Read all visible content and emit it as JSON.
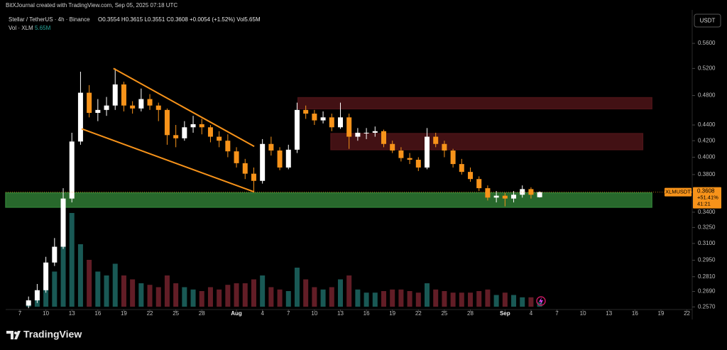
{
  "header": {
    "credit": "BitXJournal created with TradingView.com, Sep 05, 2025 07:18 UTC",
    "symbol": "Stellar / TetherUS · 4h · Binance",
    "ohlc": "O0.3554 H0.3615 L0.3551 C0.3608 +0.0054 (+1.52%) Vol5.65M",
    "volume_label": "Vol · XLM",
    "volume_value": "5.65M"
  },
  "currency_button": "USDT",
  "footer_logo": "TradingView",
  "chart_data": {
    "type": "candlestick",
    "x": [
      1,
      2,
      3,
      4,
      5,
      6,
      7,
      8,
      9,
      10,
      11,
      12,
      13,
      14,
      15,
      16,
      17,
      18,
      19,
      20,
      21,
      22,
      23,
      24,
      25,
      26,
      27,
      28,
      29,
      30,
      31,
      32,
      33,
      34,
      35,
      36,
      37,
      38,
      39,
      40,
      41,
      42,
      43,
      44,
      45,
      46,
      47,
      48,
      49,
      50,
      51,
      52,
      53,
      54,
      55,
      56,
      57,
      58,
      59,
      60
    ],
    "open": [
      0.258,
      0.262,
      0.27,
      0.293,
      0.307,
      0.354,
      0.419,
      0.484,
      0.456,
      0.46,
      0.466,
      0.496,
      0.466,
      0.462,
      0.475,
      0.466,
      0.46,
      0.427,
      0.423,
      0.437,
      0.441,
      0.437,
      0.425,
      0.42,
      0.407,
      0.393,
      0.381,
      0.373,
      0.416,
      0.408,
      0.388,
      0.409,
      0.46,
      0.455,
      0.446,
      0.45,
      0.437,
      0.45,
      0.425,
      0.43,
      0.43,
      0.432,
      0.416,
      0.408,
      0.399,
      0.397,
      0.388,
      0.425,
      0.416,
      0.408,
      0.392,
      0.383,
      0.375,
      0.365,
      0.355,
      0.357,
      0.354,
      0.358,
      0.364,
      0.3554
    ],
    "high": [
      0.265,
      0.275,
      0.298,
      0.315,
      0.365,
      0.43,
      0.515,
      0.495,
      0.475,
      0.478,
      0.52,
      0.5,
      0.472,
      0.49,
      0.482,
      0.47,
      0.462,
      0.44,
      0.445,
      0.452,
      0.448,
      0.44,
      0.432,
      0.428,
      0.412,
      0.398,
      0.388,
      0.422,
      0.425,
      0.412,
      0.415,
      0.47,
      0.466,
      0.46,
      0.458,
      0.455,
      0.47,
      0.455,
      0.436,
      0.436,
      0.438,
      0.434,
      0.42,
      0.412,
      0.405,
      0.4,
      0.436,
      0.43,
      0.42,
      0.41,
      0.398,
      0.388,
      0.378,
      0.368,
      0.362,
      0.36,
      0.362,
      0.368,
      0.366,
      0.3615
    ],
    "low": [
      0.256,
      0.26,
      0.268,
      0.29,
      0.305,
      0.35,
      0.415,
      0.45,
      0.445,
      0.452,
      0.46,
      0.458,
      0.455,
      0.458,
      0.46,
      0.445,
      0.415,
      0.412,
      0.42,
      0.43,
      0.428,
      0.418,
      0.412,
      0.4,
      0.388,
      0.375,
      0.362,
      0.37,
      0.402,
      0.385,
      0.386,
      0.405,
      0.448,
      0.44,
      0.442,
      0.432,
      0.435,
      0.41,
      0.42,
      0.422,
      0.425,
      0.412,
      0.405,
      0.395,
      0.392,
      0.384,
      0.386,
      0.412,
      0.4,
      0.388,
      0.38,
      0.372,
      0.362,
      0.352,
      0.35,
      0.346,
      0.35,
      0.355,
      0.354,
      0.3551
    ],
    "close": [
      0.262,
      0.27,
      0.293,
      0.307,
      0.354,
      0.419,
      0.484,
      0.456,
      0.46,
      0.466,
      0.496,
      0.466,
      0.462,
      0.475,
      0.466,
      0.46,
      0.427,
      0.423,
      0.437,
      0.441,
      0.437,
      0.425,
      0.42,
      0.407,
      0.393,
      0.381,
      0.373,
      0.416,
      0.408,
      0.388,
      0.409,
      0.46,
      0.455,
      0.446,
      0.45,
      0.437,
      0.45,
      0.425,
      0.43,
      0.43,
      0.432,
      0.416,
      0.408,
      0.399,
      0.397,
      0.388,
      0.425,
      0.416,
      0.408,
      0.392,
      0.383,
      0.375,
      0.365,
      0.355,
      0.357,
      0.354,
      0.358,
      0.364,
      0.358,
      0.3608
    ],
    "volume": [
      5,
      10,
      30,
      45,
      90,
      120,
      80,
      60,
      45,
      40,
      55,
      40,
      35,
      30,
      28,
      25,
      40,
      30,
      25,
      22,
      20,
      25,
      22,
      28,
      30,
      30,
      35,
      40,
      25,
      22,
      20,
      50,
      35,
      25,
      22,
      25,
      35,
      40,
      22,
      18,
      18,
      20,
      22,
      22,
      20,
      18,
      30,
      22,
      20,
      18,
      18,
      18,
      20,
      22,
      15,
      18,
      15,
      12,
      12,
      5.65
    ],
    "up_color": "#ffffff",
    "down_color": "#f7931a",
    "volume_up_color": "#1f6f6a",
    "volume_down_color": "#7a2430",
    "log_scale": true,
    "ylim": [
      0.255,
      0.613
    ],
    "yticks": [
      {
        "value": 0.56,
        "label": "0.5600"
      },
      {
        "value": 0.52,
        "label": "0.5200"
      },
      {
        "value": 0.48,
        "label": "0.4800"
      },
      {
        "value": 0.44,
        "label": "0.4400"
      },
      {
        "value": 0.42,
        "label": "0.4200"
      },
      {
        "value": 0.4,
        "label": "0.4000"
      },
      {
        "value": 0.38,
        "label": "0.3800"
      },
      {
        "value": 0.34,
        "label": "0.3400"
      },
      {
        "value": 0.325,
        "label": "0.3250"
      },
      {
        "value": 0.31,
        "label": "0.3100"
      },
      {
        "value": 0.295,
        "label": "0.2950"
      },
      {
        "value": 0.281,
        "label": "0.2810"
      },
      {
        "value": 0.269,
        "label": "0.2690"
      },
      {
        "value": 0.257,
        "label": "0.2570"
      }
    ],
    "xlim": [
      -1.64,
      77.2
    ],
    "xticks": [
      {
        "value": 0,
        "label": "7"
      },
      {
        "value": 3,
        "label": "10"
      },
      {
        "value": 6,
        "label": "13"
      },
      {
        "value": 9,
        "label": "16"
      },
      {
        "value": 12,
        "label": "19"
      },
      {
        "value": 15,
        "label": "22"
      },
      {
        "value": 18,
        "label": "25"
      },
      {
        "value": 21,
        "label": "28"
      },
      {
        "value": 25,
        "label": "Aug"
      },
      {
        "value": 28,
        "label": "4"
      },
      {
        "value": 31,
        "label": "7"
      },
      {
        "value": 34,
        "label": "10"
      },
      {
        "value": 37,
        "label": "13"
      },
      {
        "value": 40,
        "label": "16"
      },
      {
        "value": 43,
        "label": "19"
      },
      {
        "value": 46,
        "label": "22"
      },
      {
        "value": 49,
        "label": "25"
      },
      {
        "value": 52,
        "label": "28"
      },
      {
        "value": 56,
        "label": "Sep"
      },
      {
        "value": 59,
        "label": "4"
      },
      {
        "value": 62,
        "label": "7"
      },
      {
        "value": 65,
        "label": "10"
      },
      {
        "value": 68,
        "label": "13"
      },
      {
        "value": 71,
        "label": "16"
      },
      {
        "value": 74,
        "label": "19"
      },
      {
        "value": 77,
        "label": "22"
      }
    ],
    "zones": [
      {
        "x": [
          -1.64,
          72.95
        ],
        "y": [
          0.345,
          0.36
        ],
        "color": "#2f7a34"
      },
      {
        "x": [
          32.1,
          72.95
        ],
        "y": [
          0.4615,
          0.477
        ],
        "color": "#4d1418"
      },
      {
        "x": [
          35.9,
          71.9
        ],
        "y": [
          0.409,
          0.429
        ],
        "color": "#4d1418"
      }
    ],
    "trendlines": [
      {
        "x": [
          10.8,
          27.05
        ],
        "y": [
          0.52,
          0.413
        ],
        "color": "#f7931a"
      },
      {
        "x": [
          7.13,
          27.05
        ],
        "y": [
          0.435,
          0.361
        ],
        "color": "#f7931a"
      }
    ],
    "last_price": {
      "symbol": "XLMUSDT",
      "value": 0.3608,
      "change": "+51.41%",
      "countdown": "41:21",
      "color": "#f7931a"
    }
  }
}
